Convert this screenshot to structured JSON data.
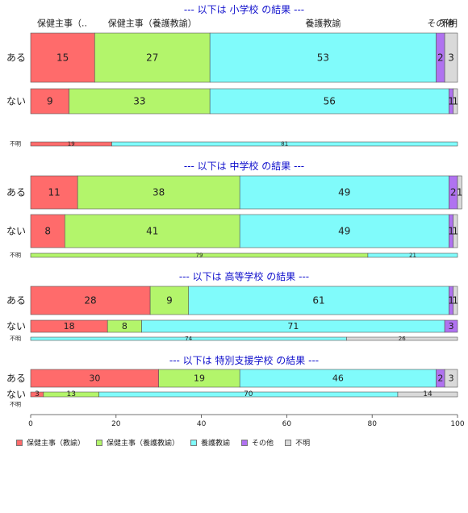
{
  "chart_data": {
    "type": "bar",
    "orientation": "horizontal",
    "stacked": "percent",
    "xlim": [
      0,
      100
    ],
    "x_ticks": [
      "0",
      "20",
      "40",
      "60",
      "80",
      "100"
    ],
    "grid": false,
    "legend_position": "bottom-left",
    "top_labels": [
      "保健主事（..",
      "保健主事（養護教諭）",
      "養護教諭",
      "その他",
      "不明"
    ],
    "series": [
      {
        "name": "保健主事（教諭）",
        "color": "#ff6b6b"
      },
      {
        "name": "保健主事（養護教諭）",
        "color": "#b3f56b"
      },
      {
        "name": "養護教諭",
        "color": "#80fbfb"
      },
      {
        "name": "その他",
        "color": "#b072f0"
      },
      {
        "name": "不明",
        "color": "#d9d9d9"
      }
    ],
    "panels": [
      {
        "title": "--- 以下は 小学校 の結果 ---",
        "rows": [
          {
            "label": "ある",
            "values": [
              15,
              27,
              53,
              2,
              3
            ],
            "labels": [
              "15",
              "27",
              "53",
              "2",
              "3"
            ]
          },
          {
            "label": "ない",
            "values": [
              9,
              33,
              56,
              1,
              1
            ],
            "labels": [
              "9",
              "33",
              "56",
              "1",
              "1"
            ]
          },
          {
            "label": "不明",
            "values": [
              19,
              0,
              81,
              0,
              0
            ],
            "labels": [
              "19",
              "",
              "81",
              "",
              ""
            ]
          }
        ]
      },
      {
        "title": "--- 以下は 中学校 の結果 ---",
        "rows": [
          {
            "label": "ある",
            "values": [
              11,
              38,
              49,
              2,
              1
            ],
            "labels": [
              "11",
              "38",
              "49",
              "2",
              "1"
            ]
          },
          {
            "label": "ない",
            "values": [
              8,
              41,
              49,
              1,
              1
            ],
            "labels": [
              "8",
              "41",
              "49",
              "1",
              "1"
            ]
          },
          {
            "label": "不明",
            "values": [
              0,
              79,
              21,
              0,
              0
            ],
            "labels": [
              "",
              "79",
              "21",
              "",
              ""
            ]
          }
        ]
      },
      {
        "title": "--- 以下は 高等学校 の結果 ---",
        "rows": [
          {
            "label": "ある",
            "values": [
              28,
              9,
              61,
              1,
              1
            ],
            "labels": [
              "28",
              "9",
              "61",
              "1",
              "1"
            ]
          },
          {
            "label": "ない",
            "values": [
              18,
              8,
              71,
              3,
              0
            ],
            "labels": [
              "18",
              "8",
              "71",
              "3",
              ""
            ]
          },
          {
            "label": "不明",
            "values": [
              0,
              0,
              74,
              0,
              26
            ],
            "labels": [
              "",
              "",
              "74",
              "",
              "26"
            ]
          }
        ]
      },
      {
        "title": "--- 以下は 特別支援学校 の結果 ---",
        "rows": [
          {
            "label": "ある",
            "values": [
              30,
              19,
              46,
              2,
              3
            ],
            "labels": [
              "30",
              "19",
              "46",
              "2",
              "3"
            ]
          },
          {
            "label": "ない",
            "values": [
              3,
              13,
              70,
              0,
              14
            ],
            "labels": [
              "3",
              "13",
              "70",
              "",
              "14"
            ]
          },
          {
            "label": "不明",
            "values": [
              0,
              0,
              0,
              0,
              0
            ],
            "labels": [
              "",
              "",
              "",
              "",
              ""
            ]
          }
        ]
      }
    ]
  }
}
